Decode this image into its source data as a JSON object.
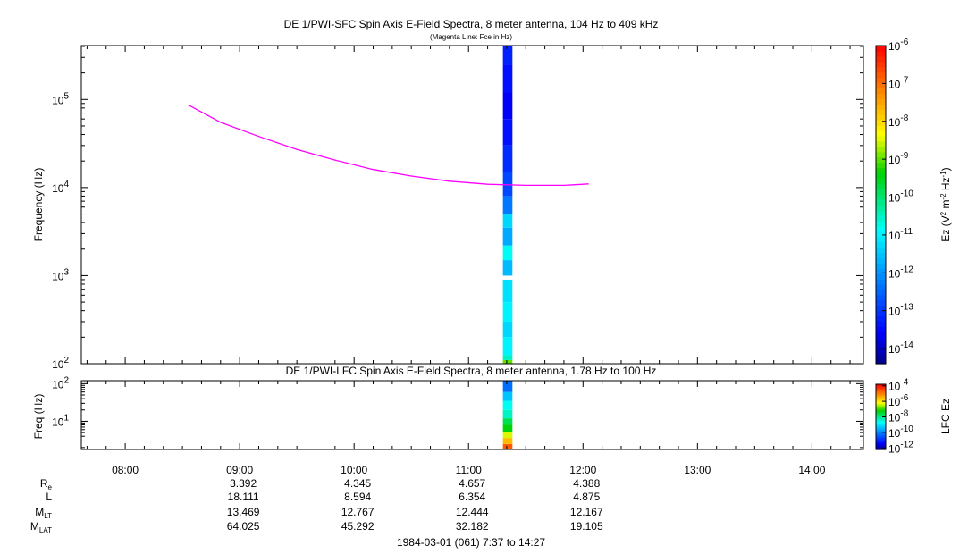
{
  "chart_data": [
    {
      "type": "heatmap",
      "title": "DE 1/PWI-SFC  Spin Axis E-Field Spectra, 8 meter antenna, 104 Hz to 409 kHz",
      "subtitle": "(Magenta Line: Fce in Hz)",
      "ylabel": "Frequency (Hz)",
      "yscale": "log",
      "ylim": [
        100,
        409000
      ],
      "yticks": [
        {
          "value": 100,
          "base": "10",
          "exp": "2"
        },
        {
          "value": 1000,
          "base": "10",
          "exp": "3"
        },
        {
          "value": 10000,
          "base": "10",
          "exp": "4"
        },
        {
          "value": 100000,
          "base": "10",
          "exp": "5"
        }
      ],
      "colorbar": {
        "label": "Ez (V² m⁻² Hz⁻¹)",
        "label_parts": {
          "a": "Ez (V",
          "b": "2",
          "c": " m",
          "d": "-2",
          "e": " Hz",
          "f": "-1",
          "g": ")"
        },
        "scale": "log",
        "range": [
          -14.4,
          -6
        ],
        "ticks": [
          {
            "value": -6,
            "label": "-6"
          },
          {
            "value": -7,
            "label": "-7"
          },
          {
            "value": -8,
            "label": "-8"
          },
          {
            "value": -9,
            "label": "-9"
          },
          {
            "value": -10,
            "label": "-10"
          },
          {
            "value": -11,
            "label": "-11"
          },
          {
            "value": -12,
            "label": "-12"
          },
          {
            "value": -13,
            "label": "-13"
          },
          {
            "value": -14,
            "label": "-14"
          }
        ]
      },
      "data_column": {
        "time_start": "11:18",
        "time_end": "11:23",
        "cells": [
          {
            "f_lo": 100,
            "f_hi": 110,
            "log_ez": -9
          },
          {
            "f_lo": 110,
            "f_hi": 125,
            "log_ez": -10.5
          },
          {
            "f_lo": 125,
            "f_hi": 200,
            "log_ez": -11
          },
          {
            "f_lo": 200,
            "f_hi": 300,
            "log_ez": -11.3
          },
          {
            "f_lo": 300,
            "f_hi": 500,
            "log_ez": -11
          },
          {
            "f_lo": 500,
            "f_hi": 900,
            "log_ez": -11.2
          },
          {
            "f_lo": 1000,
            "f_hi": 1500,
            "log_ez": -11.6
          },
          {
            "f_lo": 1500,
            "f_hi": 2200,
            "log_ez": -10.8
          },
          {
            "f_lo": 2200,
            "f_hi": 3500,
            "log_ez": -11.8
          },
          {
            "f_lo": 3500,
            "f_hi": 5000,
            "log_ez": -11.3
          },
          {
            "f_lo": 5000,
            "f_hi": 8000,
            "log_ez": -12.3
          },
          {
            "f_lo": 8000,
            "f_hi": 15000,
            "log_ez": -12.8
          },
          {
            "f_lo": 15000,
            "f_hi": 30000,
            "log_ez": -13.1
          },
          {
            "f_lo": 30000,
            "f_hi": 60000,
            "log_ez": -13.4
          },
          {
            "f_lo": 60000,
            "f_hi": 120000,
            "log_ez": -13.6
          },
          {
            "f_lo": 120000,
            "f_hi": 250000,
            "log_ez": -13.4
          },
          {
            "f_lo": 250000,
            "f_hi": 409000,
            "log_ez": -13.2
          }
        ]
      },
      "series": [
        {
          "type": "line",
          "color": "#ff00ff",
          "points": [
            {
              "t": "08:33",
              "f": 87000
            },
            {
              "t": "08:50",
              "f": 55000
            },
            {
              "t": "09:10",
              "f": 38000
            },
            {
              "t": "09:30",
              "f": 27000
            },
            {
              "t": "09:50",
              "f": 20500
            },
            {
              "t": "10:10",
              "f": 16000
            },
            {
              "t": "10:30",
              "f": 13500
            },
            {
              "t": "10:50",
              "f": 11800
            },
            {
              "t": "11:10",
              "f": 10900
            },
            {
              "t": "11:30",
              "f": 10600
            },
            {
              "t": "11:50",
              "f": 10600
            },
            {
              "t": "12:03",
              "f": 11000
            }
          ]
        }
      ]
    },
    {
      "type": "heatmap",
      "title": "DE 1/PWI-LFC  Spin Axis E-Field Spectra, 8 meter antenna, 1.78 Hz to 100 Hz",
      "ylabel": "Freq (Hz)",
      "yscale": "log",
      "ylim": [
        1.78,
        120
      ],
      "yticks": [
        {
          "value": 10,
          "base": "10",
          "exp": "1"
        },
        {
          "value": 100,
          "base": "10",
          "exp": "2"
        }
      ],
      "colorbar": {
        "label": "LFC Ez",
        "scale": "log",
        "range": [
          -12.2,
          -3.8
        ],
        "ticks": [
          {
            "value": -4,
            "label": "-4"
          },
          {
            "value": -6,
            "label": "-6"
          },
          {
            "value": -8,
            "label": "-8"
          },
          {
            "value": -10,
            "label": "-10"
          },
          {
            "value": -12,
            "label": "-12"
          }
        ]
      },
      "data_column": {
        "time_start": "11:18",
        "time_end": "11:23",
        "cells": [
          {
            "f_lo": 1.78,
            "f_hi": 2.5,
            "log_ez": -4.6
          },
          {
            "f_lo": 2.5,
            "f_hi": 3.6,
            "log_ez": -5.5
          },
          {
            "f_lo": 3.6,
            "f_hi": 5.2,
            "log_ez": -6.3
          },
          {
            "f_lo": 5.2,
            "f_hi": 8,
            "log_ez": -7.2
          },
          {
            "f_lo": 8,
            "f_hi": 12,
            "log_ez": -7.6
          },
          {
            "f_lo": 12,
            "f_hi": 20,
            "log_ez": -8.3
          },
          {
            "f_lo": 20,
            "f_hi": 35,
            "log_ez": -8.6
          },
          {
            "f_lo": 35,
            "f_hi": 60,
            "log_ez": -9.3
          },
          {
            "f_lo": 60,
            "f_hi": 120,
            "log_ez": -10.2
          }
        ]
      }
    }
  ],
  "time_axis": {
    "range_minutes": [
      457,
      867
    ],
    "major_ticks": [
      {
        "minute": 480,
        "label": "08:00"
      },
      {
        "minute": 540,
        "label": "09:00"
      },
      {
        "minute": 600,
        "label": "10:00"
      },
      {
        "minute": 660,
        "label": "11:00"
      },
      {
        "minute": 720,
        "label": "12:00"
      },
      {
        "minute": 780,
        "label": "13:00"
      },
      {
        "minute": 840,
        "label": "14:00"
      }
    ],
    "minor_step_minutes": 10
  },
  "ephemeris": {
    "rows": [
      {
        "label": "R",
        "sub": "e",
        "values": [
          "",
          "3.392",
          "4.345",
          "4.657",
          "4.388",
          "",
          ""
        ]
      },
      {
        "label": "L",
        "sub": "",
        "values": [
          "",
          "18.111",
          "8.594",
          "6.354",
          "4.875",
          "",
          ""
        ]
      },
      {
        "label": "M",
        "sub": "LT",
        "values": [
          "",
          "13.469",
          "12.767",
          "12.444",
          "12.167",
          "",
          ""
        ]
      },
      {
        "label": "M",
        "sub": "LAT",
        "values": [
          "",
          "64.025",
          "45.292",
          "32.182",
          "19.105",
          "",
          ""
        ]
      }
    ]
  },
  "footer": "1984-03-01 (061) 7:37 to 14:27"
}
